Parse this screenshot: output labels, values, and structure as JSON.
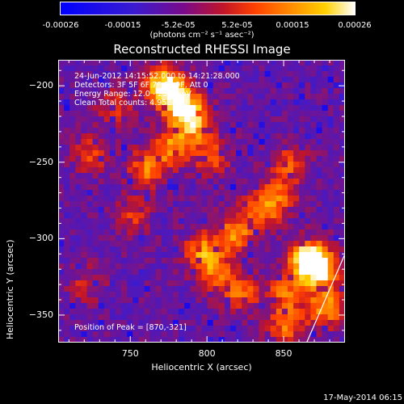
{
  "colorbar": {
    "ticks": [
      "-0.00026",
      "-0.00015",
      "-5.2e-05",
      "5.2e-05",
      "0.00015",
      "0.00026"
    ],
    "tick_positions": [
      -0.00026,
      -0.00015,
      -5.2e-05,
      5.2e-05,
      0.00015,
      0.00026
    ],
    "units": "(photons cm⁻² s⁻¹ asec⁻²)"
  },
  "title": "Reconstructed RHESSI Image",
  "annotations": {
    "time_range": "24-Jun-2012 14:15:52.000 to 14:21:28.000",
    "detectors": "Detectors: 3F 5F 6F 7F 8F 9F, Att 0",
    "energy": "Energy Range: 12.0 - 25.0 keV",
    "clean": "Clean     Total counts: 4.95E+03",
    "peak": "Position of Peak = [870,-321]"
  },
  "footer": "17-May-2014 06:15",
  "chart_data": {
    "type": "heatmap",
    "title": "Reconstructed RHESSI Image",
    "xlabel": "Heliocentric X (arcsec)",
    "ylabel": "Heliocentric Y (arcsec)",
    "xlim": [
      703,
      890
    ],
    "ylim": [
      -368,
      -183
    ],
    "xticks": [
      750,
      800,
      850
    ],
    "yticks": [
      -200,
      -250,
      -300,
      -350
    ],
    "peak": [
      870,
      -321
    ],
    "hot_spots": [
      {
        "x": 772,
        "y": -200,
        "v": 1.0
      },
      {
        "x": 783,
        "y": -212,
        "v": 0.9
      },
      {
        "x": 792,
        "y": -224,
        "v": 0.8
      },
      {
        "x": 777,
        "y": -240,
        "v": 0.6
      },
      {
        "x": 761,
        "y": -254,
        "v": 0.6
      },
      {
        "x": 803,
        "y": -246,
        "v": 0.5
      },
      {
        "x": 853,
        "y": -251,
        "v": 0.5
      },
      {
        "x": 847,
        "y": -272,
        "v": 0.45
      },
      {
        "x": 835,
        "y": -282,
        "v": 0.55
      },
      {
        "x": 818,
        "y": -297,
        "v": 0.65
      },
      {
        "x": 797,
        "y": -308,
        "v": 0.6
      },
      {
        "x": 873,
        "y": -320,
        "v": 1.0
      },
      {
        "x": 865,
        "y": -312,
        "v": 0.85
      },
      {
        "x": 853,
        "y": -333,
        "v": 0.6
      },
      {
        "x": 822,
        "y": -335,
        "v": 0.55
      },
      {
        "x": 805,
        "y": -322,
        "v": 0.5
      },
      {
        "x": 852,
        "y": -356,
        "v": 0.6
      },
      {
        "x": 878,
        "y": -345,
        "v": 0.7
      },
      {
        "x": 740,
        "y": -214,
        "v": 0.35
      },
      {
        "x": 725,
        "y": -245,
        "v": 0.4
      },
      {
        "x": 752,
        "y": -285,
        "v": 0.35
      },
      {
        "x": 722,
        "y": -330,
        "v": 0.3
      }
    ],
    "limb": [
      [
        865,
        -368
      ],
      [
        890,
        -310
      ]
    ]
  }
}
